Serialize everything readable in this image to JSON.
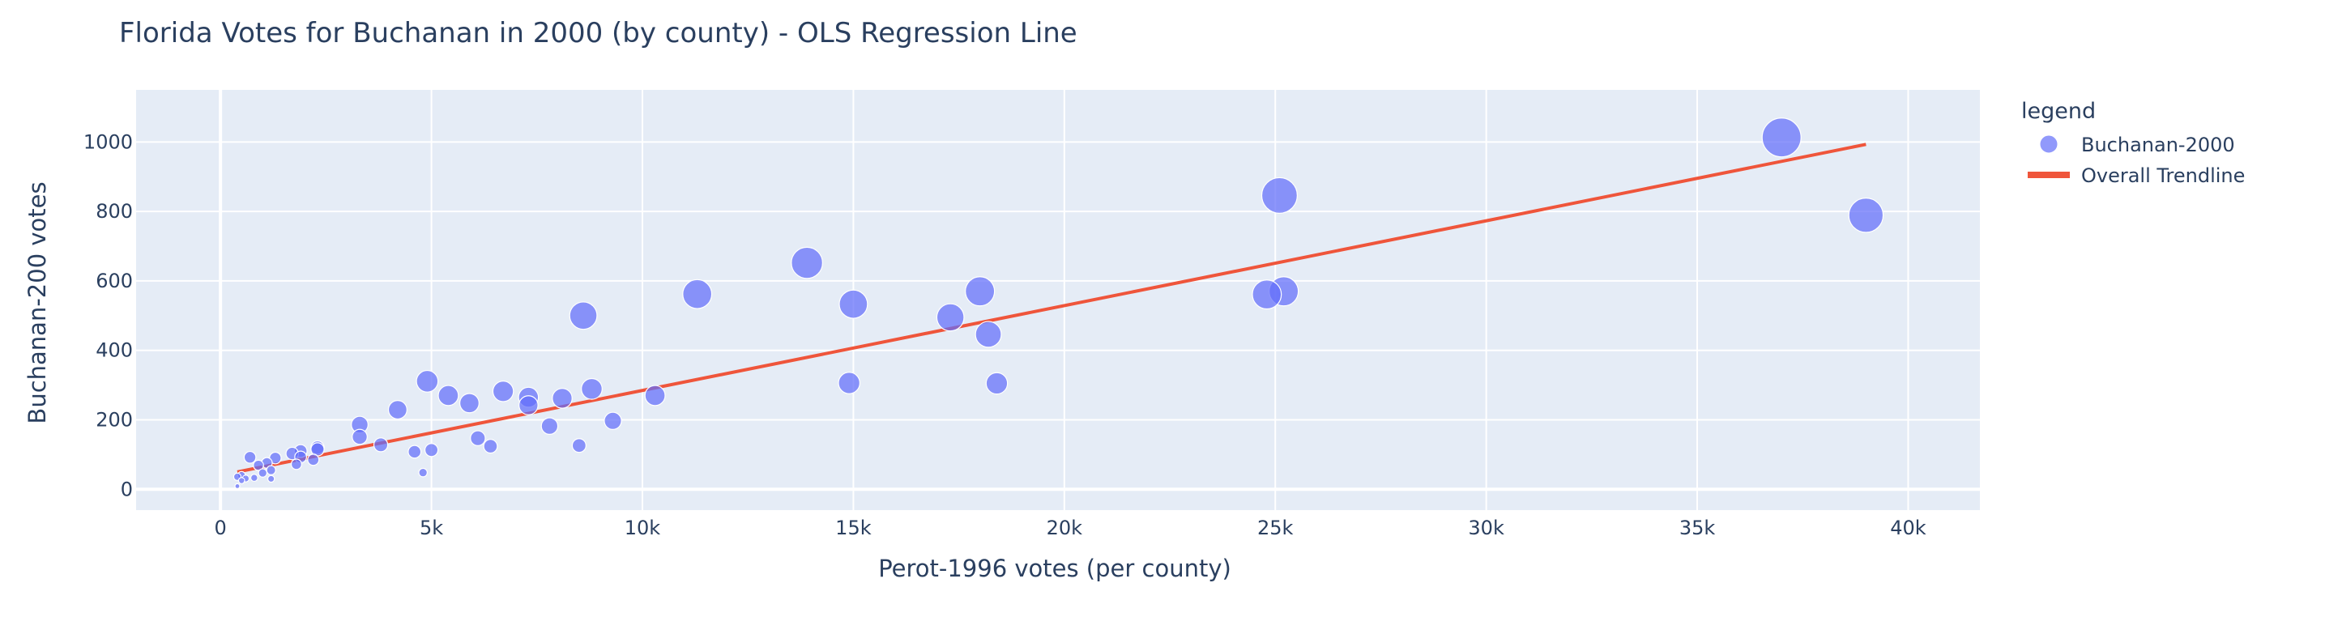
{
  "chart_data": {
    "type": "scatter",
    "title": "Florida Votes for Buchanan in 2000 (by county) - OLS Regression Line",
    "xlabel": "Perot-1996 votes (per county)",
    "ylabel": "Buchanan-200 votes",
    "xlim": [
      -2000,
      41700
    ],
    "ylim": [
      -60,
      1150
    ],
    "x_ticks": [
      0,
      5000,
      10000,
      15000,
      20000,
      25000,
      30000,
      35000,
      40000
    ],
    "x_tick_labels": [
      "0",
      "5k",
      "10k",
      "15k",
      "20k",
      "25k",
      "30k",
      "35k",
      "40k"
    ],
    "y_ticks": [
      0,
      200,
      400,
      600,
      800,
      1000
    ],
    "y_tick_labels": [
      "0",
      "200",
      "400",
      "600",
      "800",
      "1000"
    ],
    "grid": true,
    "legend": {
      "title": "legend",
      "placement": "right",
      "entries": [
        {
          "label": "Buchanan-2000",
          "kind": "marker"
        },
        {
          "label": "Overall Trendline",
          "kind": "line"
        }
      ]
    },
    "series": [
      {
        "name": "Buchanan-2000",
        "type": "scatter",
        "color": "#636efa",
        "x": [
          37000,
          25100,
          39000,
          13900,
          18000,
          11300,
          15000,
          8600,
          17300,
          25200,
          24800,
          18200,
          4900,
          8800,
          6700,
          14900,
          18400,
          10300,
          5400,
          7300,
          8100,
          5900,
          7300,
          4200,
          9300,
          3300,
          7800,
          3300,
          6100,
          6400,
          3800,
          8500,
          5000,
          4600,
          2300,
          2300,
          1900,
          1700,
          1900,
          2200,
          1300,
          1100,
          700,
          900,
          1200,
          1800,
          1000,
          1200,
          500,
          800,
          600,
          400,
          4800,
          400,
          500
        ],
        "y": [
          1013,
          846,
          789,
          652,
          570,
          562,
          533,
          500,
          495,
          570,
          561,
          446,
          311,
          289,
          282,
          306,
          305,
          270,
          270,
          265,
          262,
          248,
          242,
          229,
          197,
          186,
          182,
          151,
          147,
          124,
          128,
          126,
          113,
          108,
          120,
          115,
          110,
          103,
          93,
          85,
          90,
          76,
          92,
          69,
          55,
          72,
          47,
          30,
          40,
          33,
          31,
          36,
          48,
          9,
          25
        ],
        "sizes": [
          1013,
          846,
          789,
          652,
          570,
          562,
          533,
          500,
          495,
          570,
          561,
          446,
          311,
          289,
          282,
          306,
          305,
          270,
          270,
          265,
          262,
          248,
          242,
          229,
          197,
          186,
          182,
          151,
          147,
          124,
          128,
          126,
          113,
          108,
          120,
          115,
          110,
          103,
          93,
          85,
          90,
          76,
          92,
          69,
          55,
          72,
          47,
          30,
          40,
          33,
          31,
          36,
          48,
          9,
          25
        ]
      },
      {
        "name": "Overall Trendline",
        "type": "line",
        "color": "#ef553b",
        "x": [
          400,
          39000
        ],
        "y": [
          50,
          993
        ]
      }
    ]
  }
}
